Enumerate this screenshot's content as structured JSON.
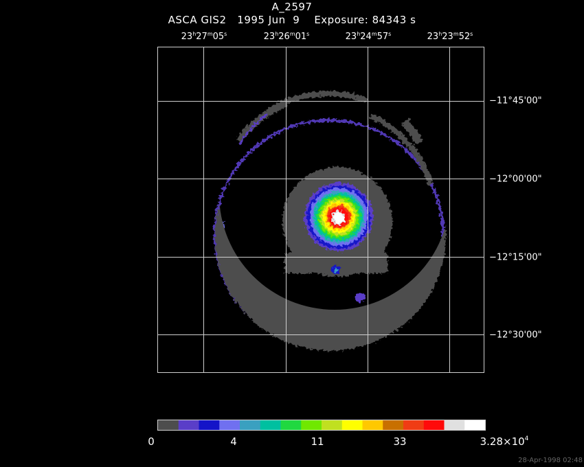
{
  "header": {
    "title": "A_2597",
    "subtitle": "ASCA GIS2   1995 Jun  9    Exposure: 84343 s"
  },
  "ra_ticks": [
    {
      "h": "23",
      "m": "27",
      "s": "05"
    },
    {
      "h": "23",
      "m": "26",
      "s": "01"
    },
    {
      "h": "23",
      "m": "24",
      "s": "57"
    },
    {
      "h": "23",
      "m": "23",
      "s": "52"
    }
  ],
  "dec_ticks": [
    "−11°45'00\"",
    "−12°00'00\"",
    "−12°15'00\"",
    "−12°30'00\""
  ],
  "colorbar": {
    "colors": [
      "#4d4d4d",
      "#5a3ec8",
      "#1414c8",
      "#7070f0",
      "#3aa0c0",
      "#00c0a0",
      "#20d840",
      "#70e800",
      "#c0e020",
      "#ffff00",
      "#ffc800",
      "#c87000",
      "#f03c14",
      "#ff0a0a",
      "#e0e0e0",
      "#ffffff"
    ],
    "labels": [
      "0",
      "4",
      "11",
      "33"
    ],
    "max_label_mantissa": "3.28×10",
    "max_label_exp": "4"
  },
  "timestamp": "28-Apr-1998 02:48"
}
